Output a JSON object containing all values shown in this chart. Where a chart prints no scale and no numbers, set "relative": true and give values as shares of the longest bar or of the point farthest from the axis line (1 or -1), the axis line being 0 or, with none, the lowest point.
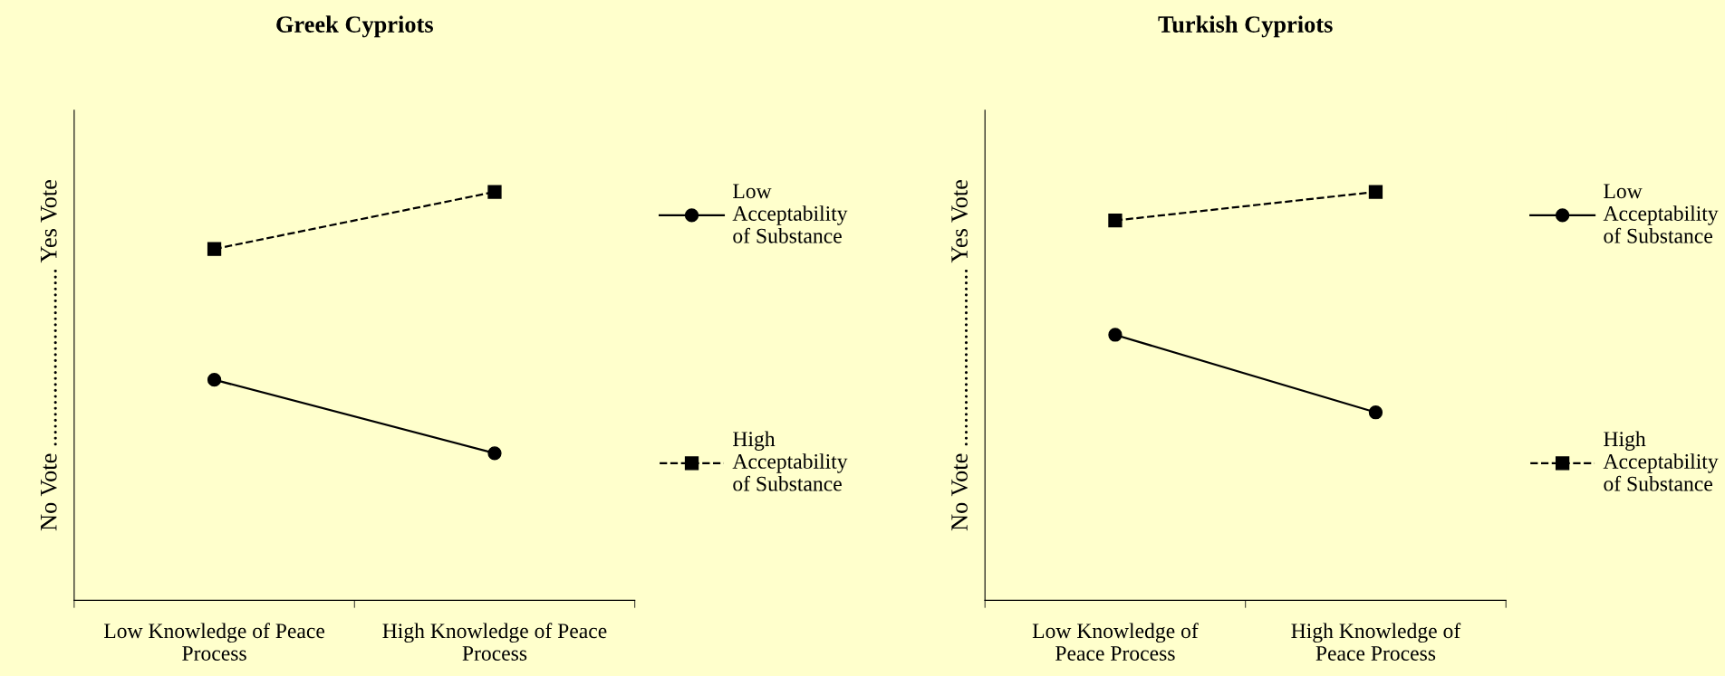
{
  "chart_data": [
    {
      "type": "line",
      "title": "Greek Cypriots",
      "ylabel": "No Vote .............................. Yes Vote",
      "categories": [
        "Low Knowledge of Peace\nProcess",
        "High Knowledge of Peace\nProcess"
      ],
      "relative": true,
      "legend": "right",
      "grid": false,
      "series": [
        {
          "name": "Low\nAcceptability\nof Substance",
          "color": "#000000",
          "marker": "circle",
          "line_style": "solid",
          "values": [
            0.54,
            0.36
          ]
        },
        {
          "name": "High\nAcceptability\nof Substance",
          "color": "#000000",
          "marker": "square",
          "line_style": "dashed",
          "values": [
            0.86,
            1
          ]
        }
      ]
    },
    {
      "type": "line",
      "title": "Turkish Cypriots",
      "ylabel": "No Vote .............................. Yes Vote",
      "categories": [
        "Low Knowledge of\nPeace Process",
        "High Knowledge of\nPeace Process"
      ],
      "relative": true,
      "legend": "right",
      "grid": false,
      "series": [
        {
          "name": "Low\nAcceptability\nof Substance",
          "color": "#000000",
          "marker": "circle",
          "line_style": "solid",
          "values": [
            0.65,
            0.46
          ]
        },
        {
          "name": "High\nAcceptability\nof Substance",
          "color": "#000000",
          "marker": "square",
          "line_style": "dashed",
          "values": [
            0.93,
            1
          ]
        }
      ]
    }
  ]
}
